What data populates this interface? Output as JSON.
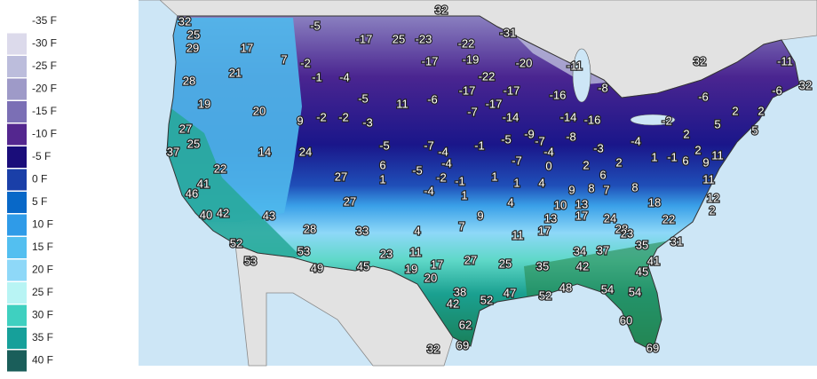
{
  "legend": {
    "items": [
      {
        "label": "-35 F",
        "color": "#f2f0f7"
      },
      {
        "label": "-30 F",
        "color": "#dcdaeb"
      },
      {
        "label": "-25 F",
        "color": "#bcbddc"
      },
      {
        "label": "-20 F",
        "color": "#9e9ac8"
      },
      {
        "label": "-15 F",
        "color": "#7b6fb5"
      },
      {
        "label": "-10 F",
        "color": "#54278f"
      },
      {
        "label": "-5 F",
        "color": "#1a0d7a"
      },
      {
        "label": "0 F",
        "color": "#1a3fa8"
      },
      {
        "label": "5 F",
        "color": "#0868c8"
      },
      {
        "label": "10 F",
        "color": "#2f9be8"
      },
      {
        "label": "15 F",
        "color": "#53bff0"
      },
      {
        "label": "20 F",
        "color": "#8ed8f8"
      },
      {
        "label": "25 F",
        "color": "#b8f4f4"
      },
      {
        "label": "30 F",
        "color": "#3fd0c0"
      },
      {
        "label": "35 F",
        "color": "#16a09a"
      },
      {
        "label": "40 F",
        "color": "#1a5e5a"
      }
    ]
  },
  "map": {
    "temperatures": [
      32,
      25,
      29,
      17,
      -5,
      -17,
      25,
      -23,
      -22,
      32,
      -31,
      7,
      -2,
      -17,
      -19,
      -20,
      -11,
      32,
      -11,
      32,
      28,
      21,
      -1,
      -4,
      -22,
      -17,
      -17,
      -8,
      -6,
      -6,
      19,
      20,
      9,
      -2,
      -2,
      -5,
      -3,
      11,
      -6,
      -17,
      -16,
      -7,
      -14,
      -14,
      -16,
      -2,
      2,
      5,
      2,
      5,
      27,
      25,
      37,
      14,
      24,
      -5,
      -7,
      -1,
      -5,
      -9,
      -7,
      -8,
      -3,
      -4,
      2,
      2,
      -4,
      6,
      1,
      -4,
      -7,
      -4,
      0,
      2,
      2,
      1,
      -1,
      6,
      9,
      11,
      22,
      -2,
      -5,
      -1,
      1,
      1,
      4,
      6,
      9,
      8,
      7,
      8,
      11,
      41,
      46,
      27,
      -4,
      1,
      12,
      27,
      10,
      13,
      18,
      4,
      2,
      40,
      42,
      43,
      9,
      7,
      4,
      13,
      17,
      24,
      22,
      28,
      33,
      28,
      11,
      17,
      23,
      52,
      35,
      31,
      11,
      53,
      23,
      34,
      37,
      53,
      27,
      25,
      35,
      42,
      41,
      49,
      45,
      19,
      17,
      20,
      45,
      48,
      54,
      54,
      38,
      47,
      52,
      42,
      52,
      62,
      60,
      32,
      69,
      69
    ]
  }
}
